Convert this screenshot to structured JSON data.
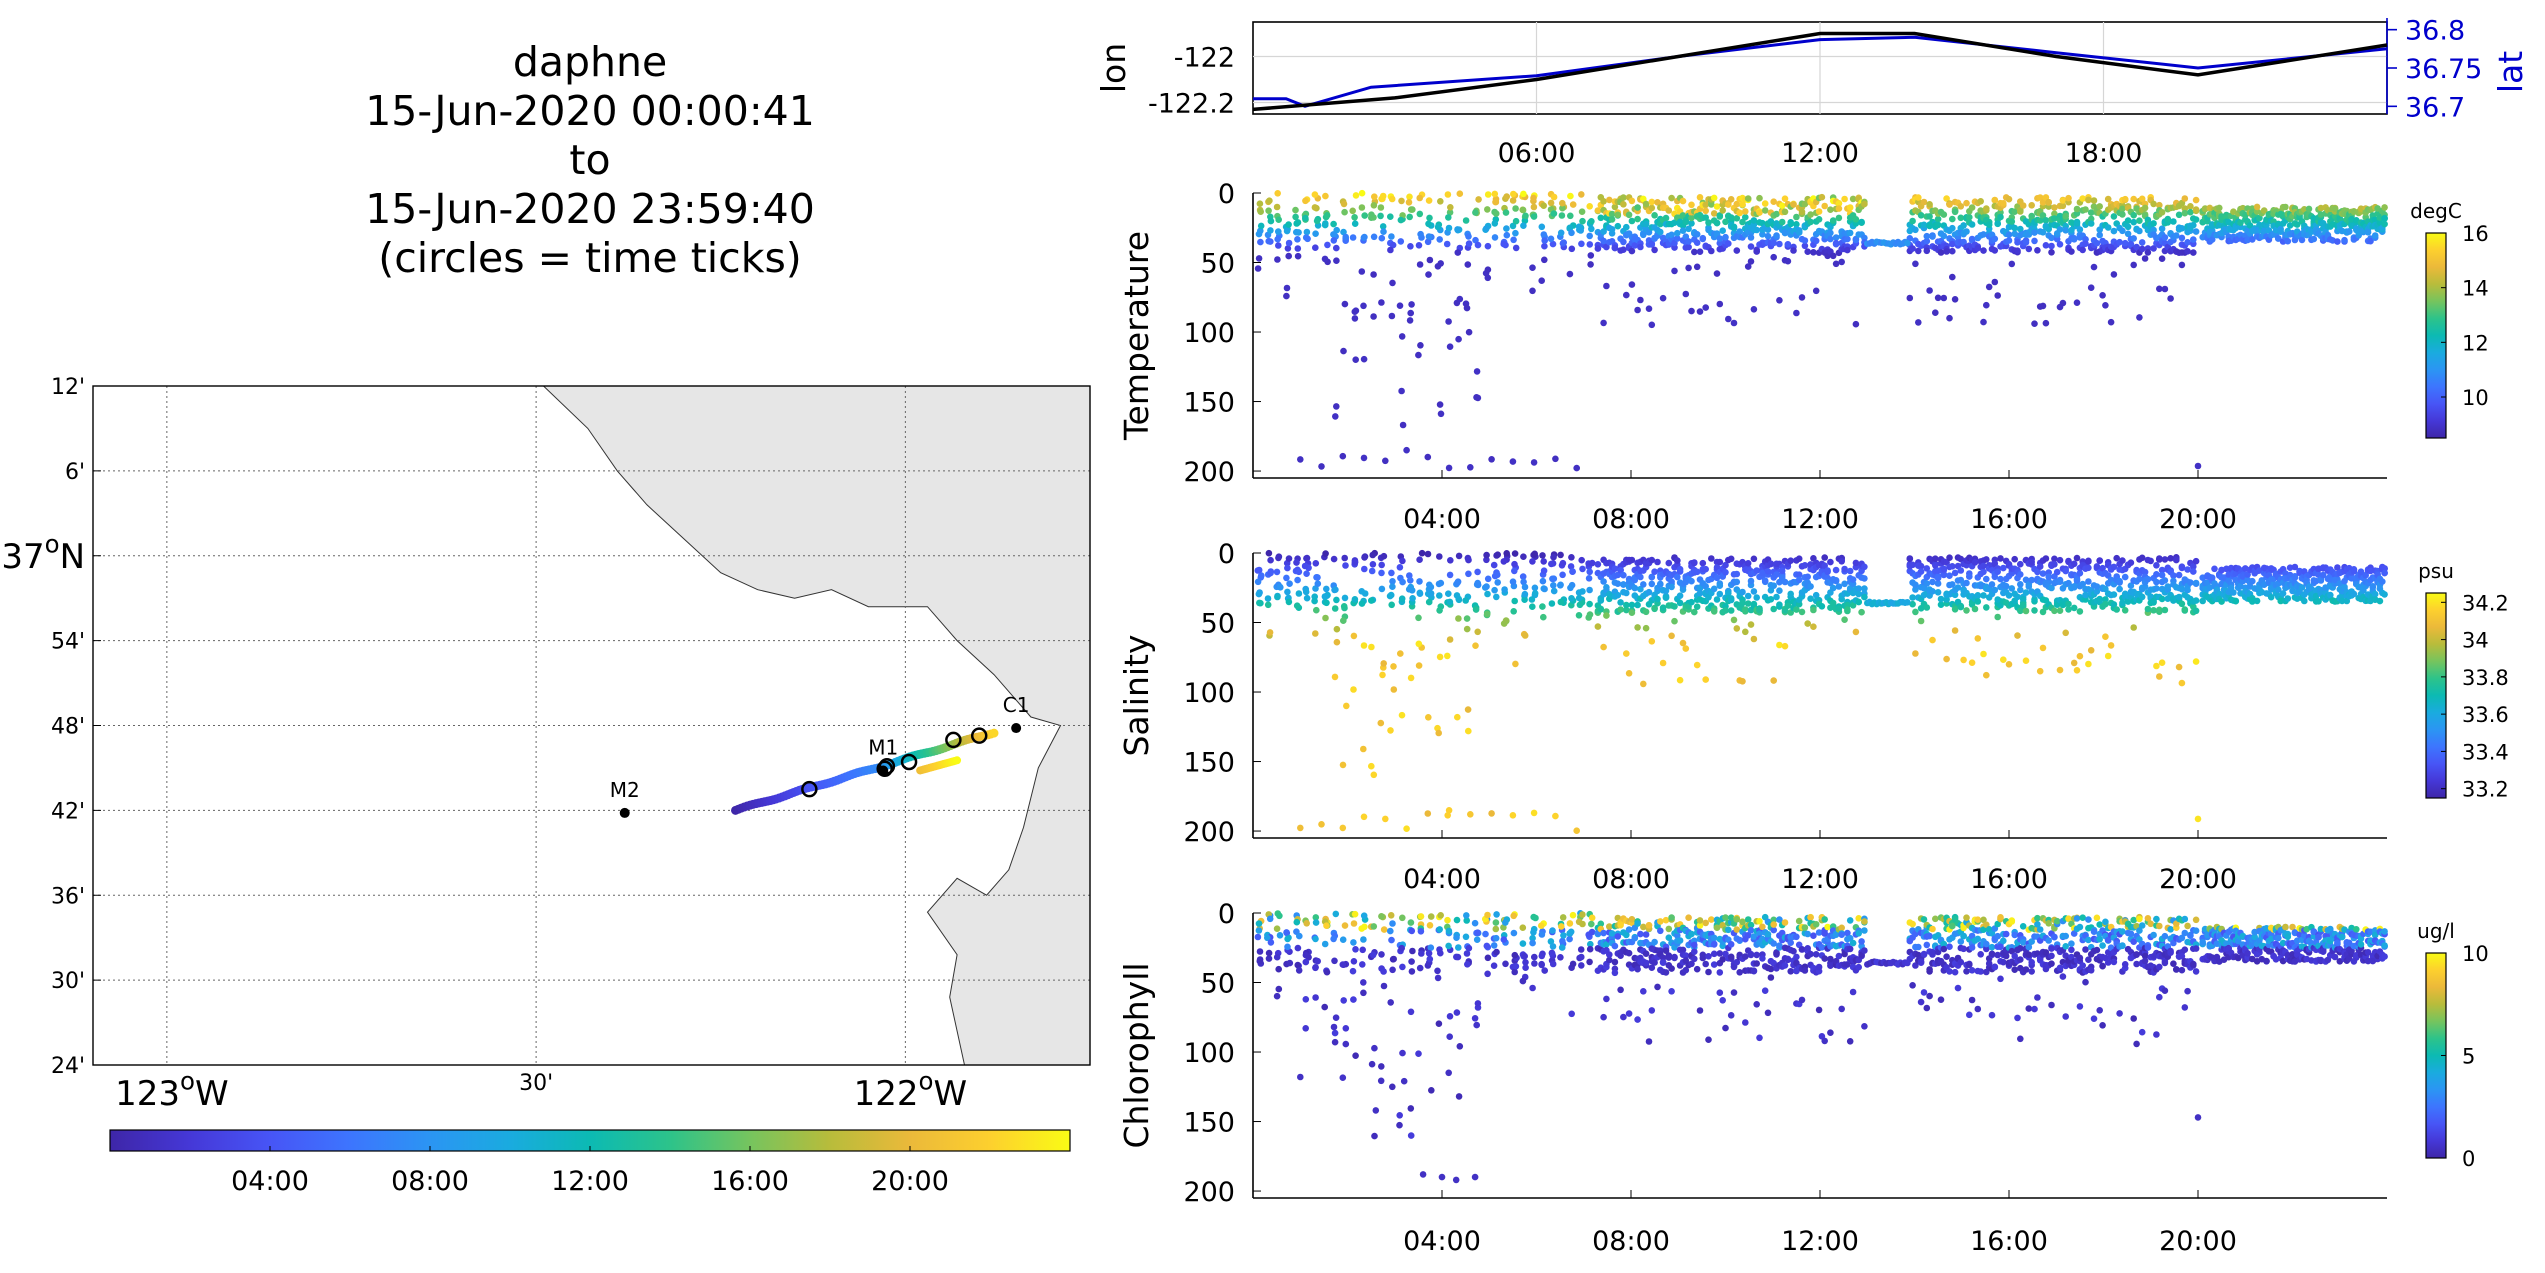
{
  "title": {
    "line1": "daphne",
    "line2": "15-Jun-2020 00:00:41",
    "line3": "to",
    "line4": "15-Jun-2020 23:59:40",
    "line5": "(circles = time ticks)"
  },
  "colors": {
    "land": "#e6e6e6",
    "lat_axis": "#0000cc",
    "track_lon": "#000000",
    "track_lat": "#0000cc",
    "colormap": [
      "#3e26a8",
      "#4538d7",
      "#4755f6",
      "#3d75fe",
      "#2b95f3",
      "#1aabdf",
      "#0cbab3",
      "#2dc38a",
      "#76c45e",
      "#b8bc3b",
      "#ebb93a",
      "#fdd02e",
      "#f9fb15"
    ]
  },
  "chart_data": [
    {
      "type": "map",
      "name": "track-map",
      "lat_ticks": [
        "12'",
        "6'",
        "37°N",
        "54'",
        "48'",
        "42'",
        "36'",
        "30'",
        "24'"
      ],
      "lat_values": [
        37.2,
        37.1,
        37.0,
        36.9,
        36.8,
        36.7,
        36.6,
        36.5,
        36.4
      ],
      "lon_ticks": [
        "123°W",
        "30'",
        "122°W"
      ],
      "lon_values": [
        -123.0,
        -122.5,
        -122.0
      ],
      "lon_range": [
        -123.1,
        -121.75
      ],
      "lat_range": [
        36.4,
        37.2
      ],
      "stations": [
        {
          "label": "C1",
          "lon": -121.85,
          "lat": 36.797
        },
        {
          "label": "M1",
          "lon": -122.03,
          "lat": 36.747
        },
        {
          "label": "M2",
          "lon": -122.38,
          "lat": 36.697
        }
      ],
      "track": {
        "start": [
          -122.23,
          36.7
        ],
        "end": [
          -121.88,
          36.792
        ]
      },
      "time_tick_circles": [
        {
          "lon": -122.13,
          "lat": 36.725
        },
        {
          "lon": -122.028,
          "lat": 36.749
        },
        {
          "lon": -122.025,
          "lat": 36.752
        },
        {
          "lon": -121.995,
          "lat": 36.757
        },
        {
          "lon": -121.935,
          "lat": 36.783
        },
        {
          "lon": -121.9,
          "lat": 36.788
        }
      ],
      "grid": true
    },
    {
      "type": "colorbar",
      "name": "time-colorbar",
      "tick_labels": [
        "04:00",
        "08:00",
        "12:00",
        "16:00",
        "20:00"
      ],
      "tick_values": [
        4,
        8,
        12,
        16,
        20
      ],
      "range": [
        0,
        24
      ]
    },
    {
      "type": "line",
      "name": "lon-lat-panel",
      "ylabel": "lon",
      "ylabel_right": "lat",
      "x_tick_labels": [
        "06:00",
        "12:00",
        "18:00"
      ],
      "x_tick_values": [
        6,
        12,
        18
      ],
      "xlim": [
        0,
        24
      ],
      "y_ticks": [
        "-122",
        "-122.2"
      ],
      "y_tick_values": [
        -122.0,
        -122.2
      ],
      "ylim": [
        -122.25,
        -121.85
      ],
      "y_right_ticks": [
        "36.8",
        "36.75",
        "36.7"
      ],
      "y_right_tick_values": [
        36.8,
        36.75,
        36.7
      ],
      "ylim_right": [
        36.69,
        36.81
      ],
      "series": [
        {
          "name": "lon",
          "x": [
            0,
            3,
            6,
            9,
            12,
            14,
            17,
            20,
            24
          ],
          "values": [
            -122.23,
            -122.18,
            -122.1,
            -122.0,
            -121.9,
            -121.9,
            -122.0,
            -122.08,
            -121.95
          ]
        },
        {
          "name": "lat",
          "x": [
            0,
            0.7,
            1.1,
            2.5,
            6,
            9,
            12,
            14,
            17,
            20,
            24
          ],
          "values": [
            36.71,
            36.71,
            36.7,
            36.725,
            36.74,
            36.765,
            36.787,
            36.79,
            36.77,
            36.75,
            36.775
          ]
        }
      ],
      "grid": true
    },
    {
      "type": "scatter",
      "name": "temperature-panel",
      "ylabel": "Temperature",
      "colorbar_label": "degC",
      "colorbar_ticks": [
        "16",
        "14",
        "12",
        "10"
      ],
      "colorbar_tick_values": [
        16,
        14,
        12,
        10
      ],
      "colorbar_range": [
        8.5,
        16
      ],
      "x_tick_labels": [
        "04:00",
        "08:00",
        "12:00",
        "16:00",
        "20:00"
      ],
      "x_tick_values": [
        4,
        8,
        12,
        16,
        20
      ],
      "xlim": [
        0,
        24
      ],
      "y_ticks": [
        "0",
        "50",
        "100",
        "150",
        "200"
      ],
      "y_tick_values": [
        0,
        50,
        100,
        150,
        200
      ],
      "ylim": [
        0,
        205
      ],
      "y_reversed": true
    },
    {
      "type": "scatter",
      "name": "salinity-panel",
      "ylabel": "Salinity",
      "colorbar_label": "psu",
      "colorbar_ticks": [
        "34.2",
        "34",
        "33.8",
        "33.6",
        "33.4",
        "33.2"
      ],
      "colorbar_tick_values": [
        34.2,
        34.0,
        33.8,
        33.6,
        33.4,
        33.2
      ],
      "colorbar_range": [
        33.15,
        34.25
      ],
      "x_tick_labels": [
        "04:00",
        "08:00",
        "12:00",
        "16:00",
        "20:00"
      ],
      "x_tick_values": [
        4,
        8,
        12,
        16,
        20
      ],
      "xlim": [
        0,
        24
      ],
      "y_ticks": [
        "0",
        "50",
        "100",
        "150",
        "200"
      ],
      "y_tick_values": [
        0,
        50,
        100,
        150,
        200
      ],
      "ylim": [
        0,
        205
      ],
      "y_reversed": true
    },
    {
      "type": "scatter",
      "name": "chlorophyll-panel",
      "ylabel": "Chlorophyll",
      "colorbar_label": "ug/l",
      "colorbar_ticks": [
        "10",
        "5",
        "0"
      ],
      "colorbar_tick_values": [
        10,
        5,
        0
      ],
      "colorbar_range": [
        0,
        10
      ],
      "x_tick_labels": [
        "04:00",
        "08:00",
        "12:00",
        "16:00",
        "20:00"
      ],
      "x_tick_values": [
        4,
        8,
        12,
        16,
        20
      ],
      "xlim": [
        0,
        24
      ],
      "y_ticks": [
        "0",
        "50",
        "100",
        "150",
        "200"
      ],
      "y_tick_values": [
        0,
        50,
        100,
        150,
        200
      ],
      "ylim": [
        0,
        205
      ],
      "y_reversed": true
    }
  ]
}
